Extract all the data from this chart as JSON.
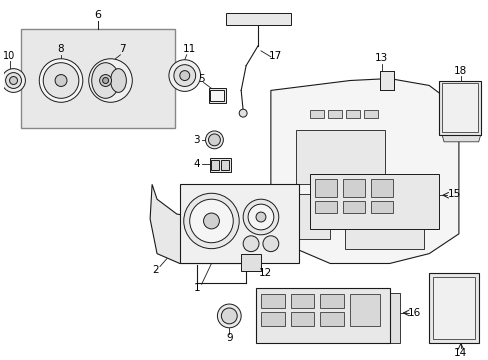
{
  "background_color": "#ffffff",
  "fig_width": 4.89,
  "fig_height": 3.6,
  "dpi": 100,
  "line_color": "#1a1a1a",
  "box_fill": "#e8e8e8",
  "part_fill": "#f0f0f0"
}
